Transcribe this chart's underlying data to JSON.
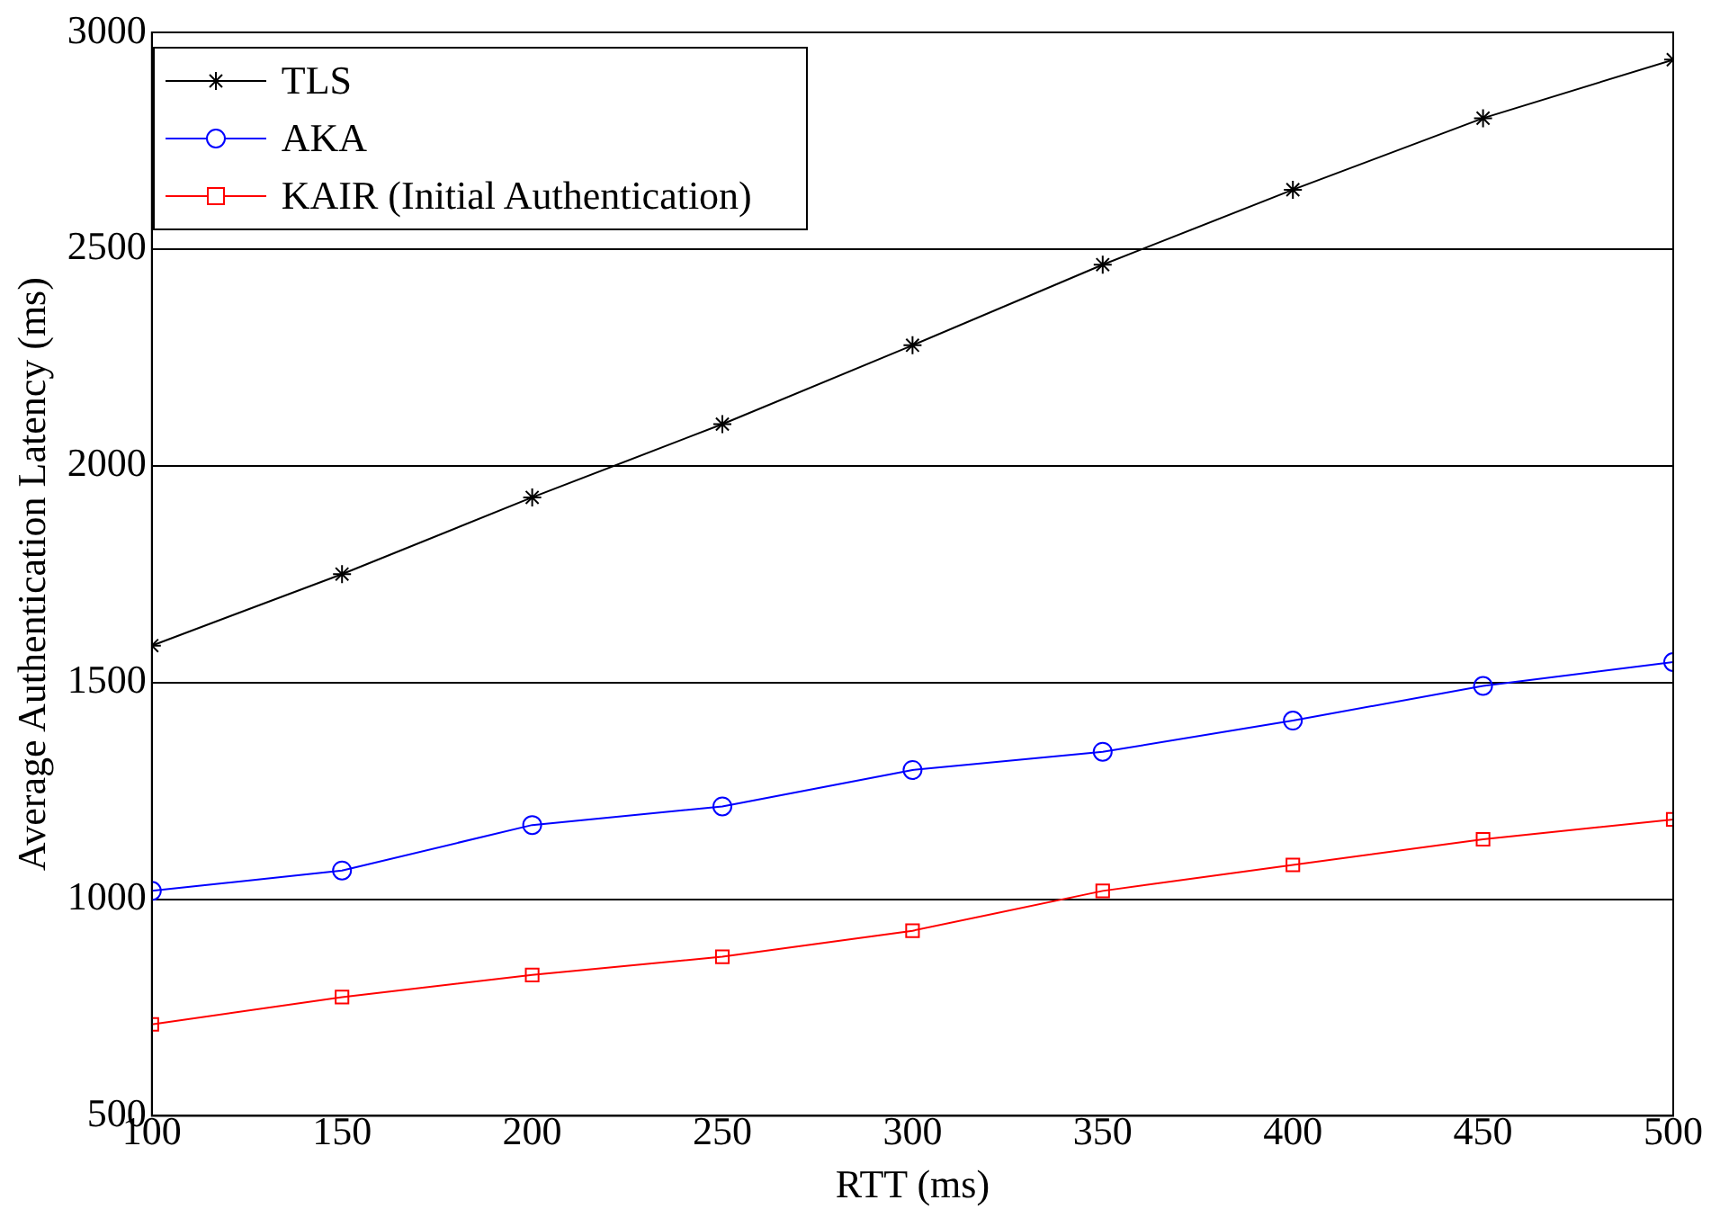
{
  "chart_data": {
    "type": "line",
    "xlabel": "RTT (ms)",
    "ylabel": "Average Authentication Latency (ms)",
    "x": [
      100,
      150,
      200,
      250,
      300,
      350,
      400,
      450,
      500
    ],
    "xlim": [
      100,
      500
    ],
    "xticks": [
      100,
      150,
      200,
      250,
      300,
      350,
      400,
      450,
      500
    ],
    "ylim": [
      500,
      3000
    ],
    "yticks": [
      500,
      1000,
      1500,
      2000,
      2500,
      3000
    ],
    "grid": "y",
    "legend": "top left",
    "line_style": "solid",
    "series": [
      {
        "name": "TLS",
        "color": "#000000",
        "marker": "cross",
        "values": [
          1585,
          1750,
          1927,
          2096,
          2278,
          2464,
          2637,
          2802,
          2937
        ]
      },
      {
        "name": "AKA",
        "color": "#0000ff",
        "marker": "circle",
        "values": [
          1019,
          1066,
          1171,
          1214,
          1298,
          1340,
          1412,
          1492,
          1547
        ]
      },
      {
        "name": "KAIR (Initial Authentication)",
        "color": "#ff0000",
        "marker": "square",
        "values": [
          711,
          774,
          825,
          867,
          927,
          1019,
          1079,
          1138,
          1184
        ]
      }
    ]
  }
}
